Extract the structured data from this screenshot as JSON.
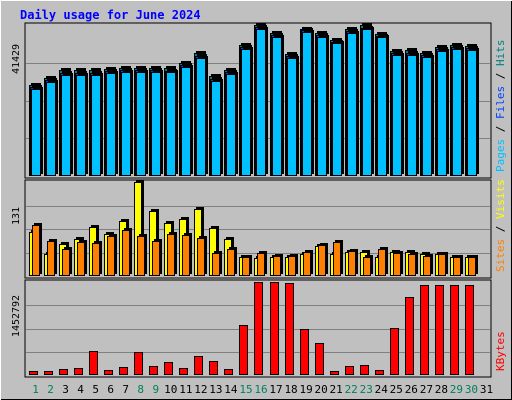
{
  "chart_data": {
    "type": "bar",
    "title": "Daily usage for June 2024",
    "days": [
      "1",
      "2",
      "3",
      "4",
      "5",
      "6",
      "7",
      "8",
      "9",
      "10",
      "11",
      "12",
      "13",
      "14",
      "15",
      "16",
      "17",
      "18",
      "19",
      "20",
      "21",
      "22",
      "23",
      "24",
      "25",
      "26",
      "27",
      "28",
      "29",
      "30",
      "31"
    ],
    "weekend_days": [
      "1",
      "2",
      "8",
      "9",
      "15",
      "16",
      "22",
      "23",
      "29",
      "30"
    ],
    "panels": [
      {
        "id": "hits",
        "max_label": "41429",
        "max": 41429,
        "legend": [
          "Pages",
          "Files",
          "Hits"
        ],
        "legend_colors": [
          "#00c0ff",
          "#0040ff",
          "#008080"
        ],
        "series": [
          {
            "name": "Hits",
            "color": "#008080",
            "values": [
              25000,
              27000,
              29000,
              29000,
              29000,
              29300,
              29600,
              29600,
              29600,
              29600,
              31000,
              33800,
              27400,
              29100,
              35900,
              41429,
              39200,
              33500,
              40400,
              39200,
              37300,
              40200,
              41300,
              39000,
              34400,
              34600,
              33800,
              35500,
              36000,
              35600,
              null
            ]
          },
          {
            "name": "Files",
            "color": "#0040ff",
            "values": [
              24400,
              26400,
              28300,
              28300,
              28300,
              28800,
              29100,
              29100,
              29100,
              28900,
              30400,
              33000,
              26700,
              28500,
              35300,
              40800,
              38600,
              33000,
              40000,
              38600,
              36900,
              39700,
              40700,
              38500,
              33800,
              33800,
              33100,
              34900,
              35400,
              35100,
              null
            ]
          },
          {
            "name": "Pages",
            "color": "#00c0ff",
            "values": [
              23800,
              25900,
              27800,
              27800,
              27800,
              28200,
              28600,
              28600,
              28600,
              28400,
              29800,
              32400,
              26200,
              28000,
              34800,
              40200,
              38000,
              32500,
              39400,
              38000,
              36400,
              39200,
              40200,
              38000,
              33300,
              33300,
              32600,
              34400,
              34900,
              34600,
              null
            ]
          }
        ]
      },
      {
        "id": "visits",
        "max_label": "131",
        "max": 131,
        "legend": [
          "Sites",
          "Visits"
        ],
        "legend_colors": [
          "#ff8000",
          "#ffff00"
        ],
        "series": [
          {
            "name": "Visits",
            "color": "#ffff00",
            "values": [
              61,
              30,
              44,
              52,
              68,
              59,
              77,
              131,
              90,
              74,
              80,
              93,
              67,
              51,
              27,
              25,
              26,
              26,
              30,
              42,
              30,
              33,
              33,
              27,
              34,
              33,
              31,
              30,
              26,
              26,
              null
            ]
          },
          {
            "name": "Sites",
            "color": "#ff8000",
            "values": [
              71,
              49,
              38,
              48,
              46,
              56,
              64,
              56,
              49,
              58,
              57,
              53,
              32,
              38,
              26,
              32,
              28,
              28,
              33,
              43,
              48,
              35,
              26,
              37,
              32,
              30,
              28,
              31,
              26,
              26,
              null
            ]
          }
        ]
      },
      {
        "id": "kbytes",
        "max_label": "1452792",
        "max": 1452792,
        "legend": [
          "KBytes"
        ],
        "legend_colors": [
          "#ff0000"
        ],
        "series": [
          {
            "name": "KBytes",
            "color": "#ff0000",
            "values": [
              60000,
              70000,
              100000,
              110000,
              370000,
              80000,
              120000,
              360000,
              140000,
              200000,
              110000,
              300000,
              220000,
              90000,
              780000,
              1452792,
              1450000,
              1440000,
              720000,
              500000,
              70000,
              140000,
              160000,
              80000,
              740000,
              1220000,
              1400000,
              1400000,
              1400000,
              1400000,
              null
            ]
          }
        ]
      }
    ]
  }
}
